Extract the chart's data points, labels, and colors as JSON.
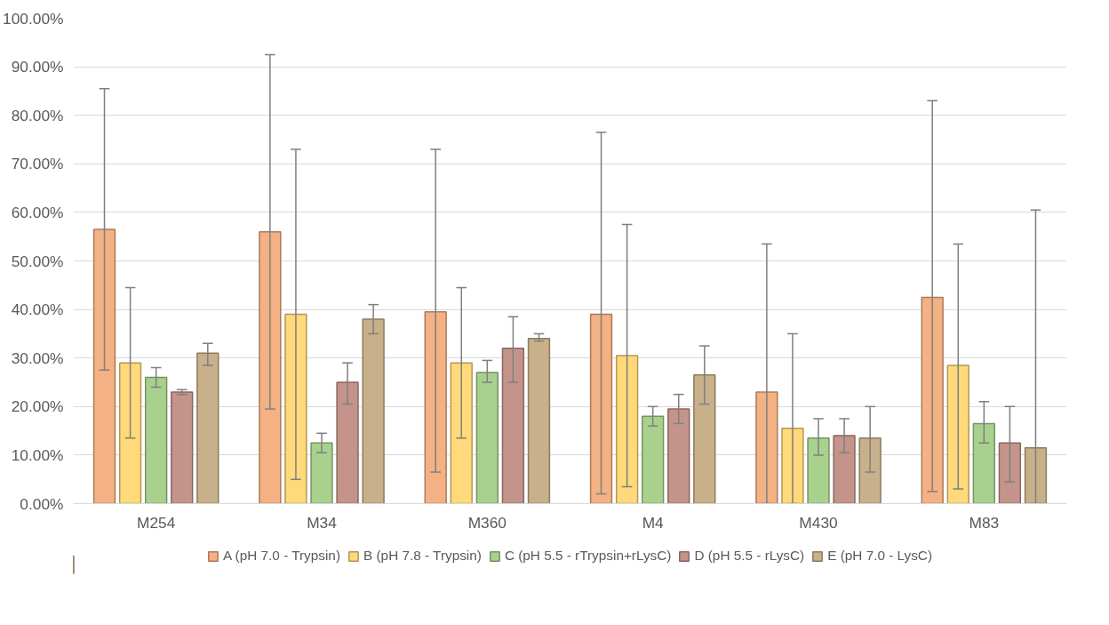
{
  "chart_data": {
    "type": "bar",
    "categories": [
      "M254",
      "M34",
      "M360",
      "M4",
      "M430",
      "M83"
    ],
    "ylim": [
      0,
      100
    ],
    "yticks": [
      {
        "value": 0,
        "label": "0.00%"
      },
      {
        "value": 10,
        "label": "10.00%"
      },
      {
        "value": 20,
        "label": "20.00%"
      },
      {
        "value": 30,
        "label": "30.00%"
      },
      {
        "value": 40,
        "label": "40.00%"
      },
      {
        "value": 50,
        "label": "50.00%"
      },
      {
        "value": 60,
        "label": "60.00%"
      },
      {
        "value": 70,
        "label": "70.00%"
      },
      {
        "value": 80,
        "label": "80.00%"
      },
      {
        "value": 90,
        "label": "90.00%"
      },
      {
        "value": 100,
        "label": "100.00%"
      }
    ],
    "grid": "y",
    "legend": "bottom",
    "series": [
      {
        "name": "A (pH 7.0 - Trypsin)",
        "color": "#f4b183",
        "values": [
          56.5,
          56,
          39.5,
          39,
          23,
          42.5
        ],
        "errors": [
          [
            27.5,
            85.5
          ],
          [
            19.5,
            92.5
          ],
          [
            6.5,
            73
          ],
          [
            2,
            76.5
          ],
          [
            0,
            53.5
          ],
          [
            2.5,
            83
          ]
        ]
      },
      {
        "name": "B (pH 7.8 - Trypsin)",
        "color": "#ffd97a",
        "values": [
          29,
          39,
          29,
          30.5,
          15.5,
          28.5
        ],
        "errors": [
          [
            13.5,
            44.5
          ],
          [
            5,
            73
          ],
          [
            13.5,
            44.5
          ],
          [
            3.5,
            57.5
          ],
          [
            0,
            35
          ],
          [
            3,
            53.5
          ]
        ]
      },
      {
        "name": "C (pH 5.5 - rTrypsin+rLysC)",
        "color": "#a9d18e",
        "values": [
          26,
          12.5,
          27,
          18,
          13.5,
          16.5
        ],
        "errors": [
          [
            24,
            28
          ],
          [
            10.5,
            14.5
          ],
          [
            25,
            29.5
          ],
          [
            16,
            20
          ],
          [
            10,
            17.5
          ],
          [
            12.5,
            21
          ]
        ]
      },
      {
        "name": "D (pH 5.5 - rLysC)",
        "color": "#c4948a",
        "values": [
          23,
          25,
          32,
          19.5,
          14,
          12.5
        ],
        "errors": [
          [
            22.5,
            23.5
          ],
          [
            20.5,
            29
          ],
          [
            25,
            38.5
          ],
          [
            16.5,
            22.5
          ],
          [
            10.5,
            17.5
          ],
          [
            4.5,
            20
          ]
        ]
      },
      {
        "name": "E (pH 7.0 - LysC)",
        "color": "#c8b08a",
        "values": [
          31,
          38,
          34,
          26.5,
          13.5,
          11.5
        ],
        "errors": [
          [
            28.5,
            33
          ],
          [
            35,
            41
          ],
          [
            33.5,
            35
          ],
          [
            20.5,
            32.5
          ],
          [
            6.5,
            20
          ],
          [
            0,
            60.5
          ]
        ]
      }
    ]
  }
}
